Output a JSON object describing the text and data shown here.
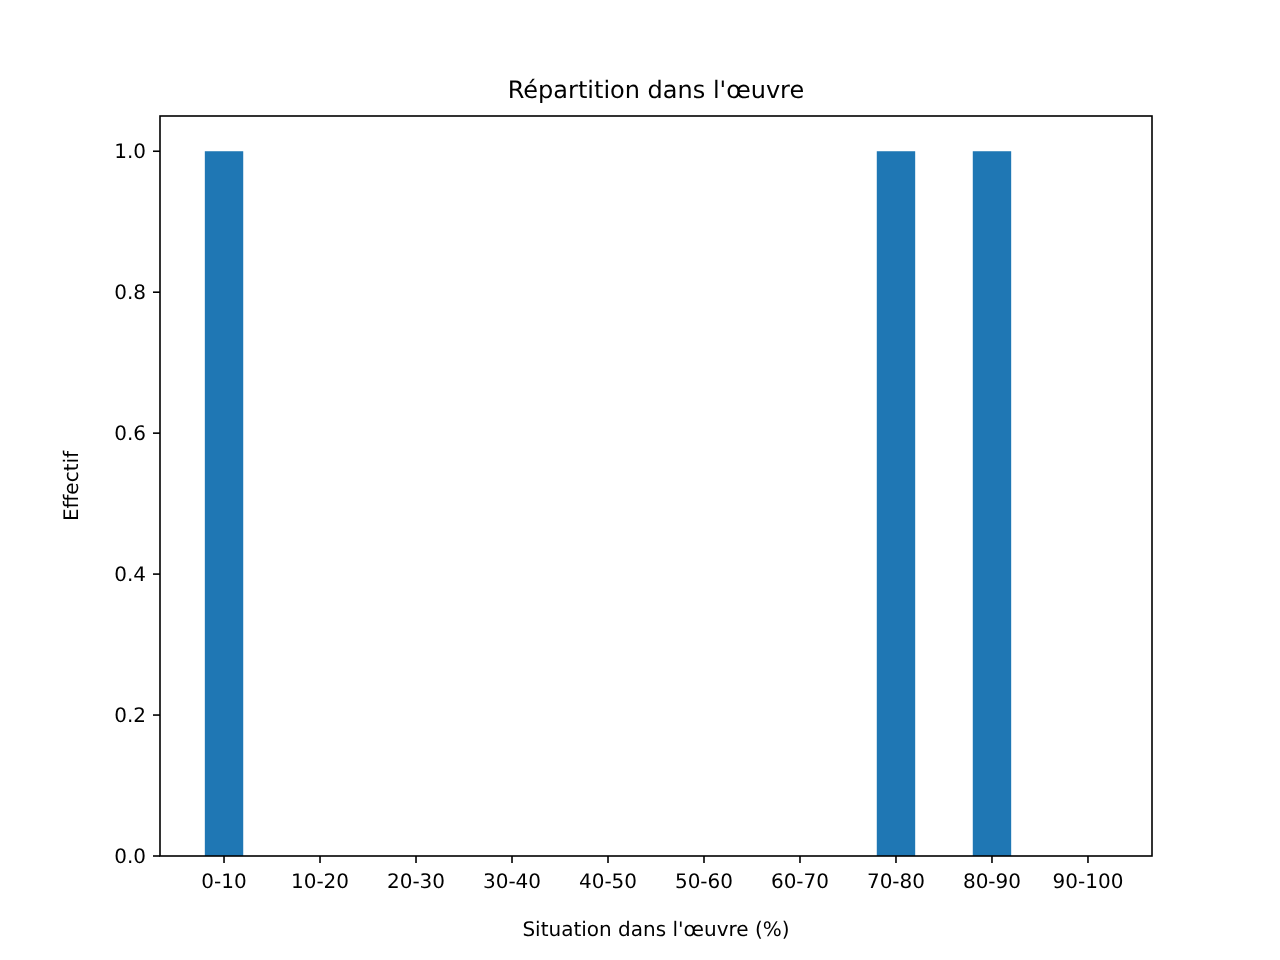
{
  "chart_data": {
    "type": "bar",
    "title": "Répartition dans l'œuvre",
    "xlabel": "Situation dans l'œuvre (%)",
    "ylabel": "Effectif",
    "categories": [
      "0-10",
      "10-20",
      "20-30",
      "30-40",
      "40-50",
      "50-60",
      "60-70",
      "70-80",
      "80-90",
      "90-100"
    ],
    "values": [
      1,
      0,
      0,
      0,
      0,
      0,
      0,
      1,
      1,
      0
    ],
    "color": "#1f77b4",
    "ylim": [
      0,
      1.05
    ],
    "yticks": [
      {
        "value": 0,
        "label": "0.0"
      },
      {
        "value": 0.2,
        "label": "0.2"
      },
      {
        "value": 0.4,
        "label": "0.4"
      },
      {
        "value": 0.6,
        "label": "0.6"
      },
      {
        "value": 0.8,
        "label": "0.8"
      },
      {
        "value": 1,
        "label": "1.0"
      }
    ]
  }
}
